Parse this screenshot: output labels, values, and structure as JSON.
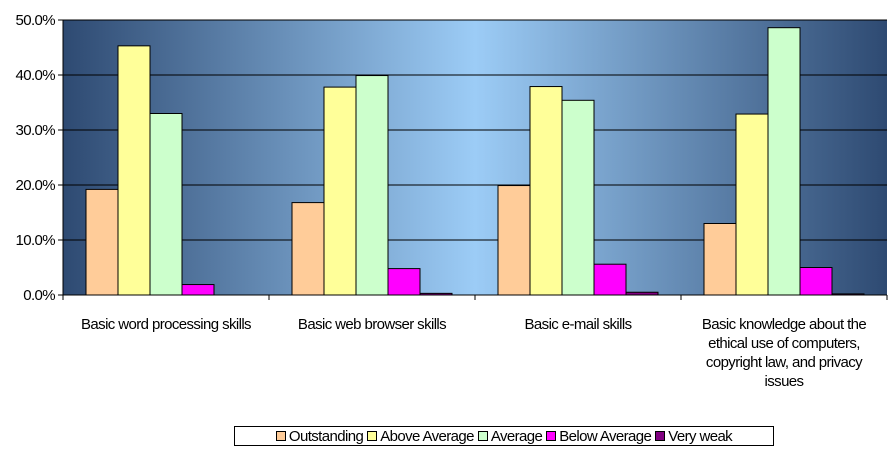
{
  "chart_data": {
    "type": "bar",
    "categories": [
      "Basic word processing skills",
      "Basic web browser skills",
      "Basic e-mail skills",
      "Basic knowledge about the ethical use of computers, copyright law, and privacy issues"
    ],
    "category_label_lines": [
      [
        "Basic word processing skills"
      ],
      [
        "Basic web browser skills"
      ],
      [
        "Basic e-mail skills"
      ],
      [
        "Basic knowledge about the",
        "ethical use of computers,",
        "copyright law, and privacy",
        "issues"
      ]
    ],
    "series": [
      {
        "name": "Outstanding",
        "color": "#FFCC99",
        "values": [
          19.2,
          16.8,
          19.9,
          13.0
        ]
      },
      {
        "name": "Above Average",
        "color": "#FFFF99",
        "values": [
          45.3,
          37.8,
          37.9,
          32.9
        ]
      },
      {
        "name": "Average",
        "color": "#CCFFCC",
        "values": [
          33.0,
          39.9,
          35.4,
          48.6
        ]
      },
      {
        "name": "Below Average",
        "color": "#FF00FF",
        "values": [
          1.9,
          4.8,
          5.6,
          5.0
        ]
      },
      {
        "name": "Very weak",
        "color": "#800080",
        "values": [
          0.0,
          0.3,
          0.5,
          0.2
        ]
      }
    ],
    "yticks": [
      "0.0%",
      "10.0%",
      "20.0%",
      "30.0%",
      "40.0%",
      "50.0%"
    ],
    "ylim": [
      0,
      50
    ],
    "title": "",
    "xlabel": "",
    "ylabel": "",
    "grid": true,
    "legend_position": "bottom"
  }
}
